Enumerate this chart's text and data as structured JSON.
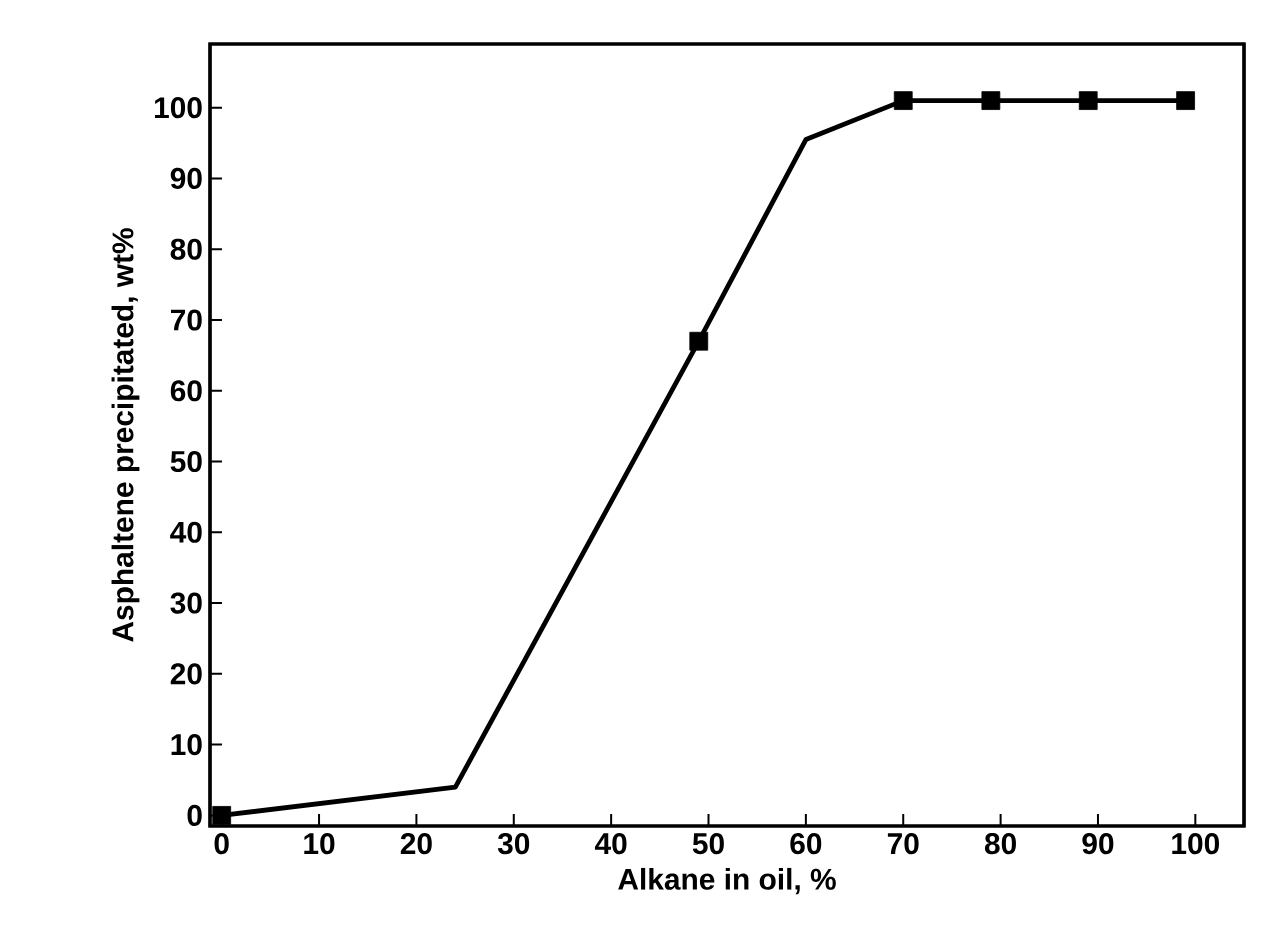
{
  "chart_data": {
    "type": "line",
    "xlabel": "Alkane in oil, %",
    "ylabel": "Asphaltene precipitated, wt%",
    "xlim": [
      -1.2,
      105
    ],
    "ylim": [
      -1.5,
      109
    ],
    "xticks": [
      0,
      10,
      20,
      30,
      40,
      50,
      60,
      70,
      80,
      90,
      100
    ],
    "yticks": [
      0,
      10,
      20,
      30,
      40,
      50,
      60,
      70,
      80,
      90,
      100
    ],
    "grid": false,
    "series": [
      {
        "color": "#000000",
        "marker": "none",
        "x": [
          0,
          24,
          49,
          60,
          70,
          79,
          89,
          99
        ],
        "values": [
          0,
          4,
          67,
          95.5,
          101,
          101,
          101,
          101
        ]
      },
      {
        "type": "scatter",
        "color": "#000000",
        "marker": "square",
        "x": [
          0,
          49,
          70,
          79,
          89,
          99
        ],
        "values": [
          0,
          67,
          101,
          101,
          101,
          101
        ]
      }
    ]
  }
}
